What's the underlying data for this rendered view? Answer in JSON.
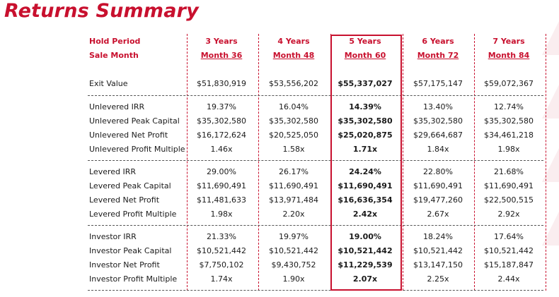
{
  "title": "Returns Summary",
  "header": {
    "hold_label": "Hold Period",
    "sale_label": "Sale Month",
    "columns": [
      {
        "period": "3 Years",
        "month": "Month 36"
      },
      {
        "period": "4 Years",
        "month": "Month 48"
      },
      {
        "period": "5 Years",
        "month": "Month 60"
      },
      {
        "period": "6 Years",
        "month": "Month 72"
      },
      {
        "period": "7 Years",
        "month": "Month 84"
      }
    ]
  },
  "highlight_column_index": 2,
  "accent_color": "#c8102e",
  "rows": [
    {
      "label": "Exit Value",
      "values": [
        "$51,830,919",
        "$53,556,202",
        "$55,337,027",
        "$57,175,147",
        "$59,072,367"
      ]
    },
    {
      "label": "Unlevered IRR",
      "values": [
        "19.37%",
        "16.04%",
        "14.39%",
        "13.40%",
        "12.74%"
      ]
    },
    {
      "label": "Unlevered Peak Capital",
      "values": [
        "$35,302,580",
        "$35,302,580",
        "$35,302,580",
        "$35,302,580",
        "$35,302,580"
      ]
    },
    {
      "label": "Unlevered Net Profit",
      "values": [
        "$16,172,624",
        "$20,525,050",
        "$25,020,875",
        "$29,664,687",
        "$34,461,218"
      ]
    },
    {
      "label": "Unlevered Profit Multiple",
      "values": [
        "1.46x",
        "1.58x",
        "1.71x",
        "1.84x",
        "1.98x"
      ]
    },
    {
      "label": "Levered IRR",
      "values": [
        "29.00%",
        "26.17%",
        "24.24%",
        "22.80%",
        "21.68%"
      ]
    },
    {
      "label": "Levered Peak Capital",
      "values": [
        "$11,690,491",
        "$11,690,491",
        "$11,690,491",
        "$11,690,491",
        "$11,690,491"
      ]
    },
    {
      "label": "Levered Net Profit",
      "values": [
        "$11,481,633",
        "$13,971,484",
        "$16,636,354",
        "$19,477,260",
        "$22,500,515"
      ]
    },
    {
      "label": "Levered Profit Multiple",
      "values": [
        "1.98x",
        "2.20x",
        "2.42x",
        "2.67x",
        "2.92x"
      ]
    },
    {
      "label": "Investor IRR",
      "values": [
        "21.33%",
        "19.97%",
        "19.00%",
        "18.24%",
        "17.64%"
      ]
    },
    {
      "label": "Investor Peak Capital",
      "values": [
        "$10,521,442",
        "$10,521,442",
        "$10,521,442",
        "$10,521,442",
        "$10,521,442"
      ]
    },
    {
      "label": "Investor Net Profit",
      "values": [
        "$7,750,102",
        "$9,430,752",
        "$11,229,539",
        "$13,147,150",
        "$15,187,847"
      ]
    },
    {
      "label": "Investor Profit Multiple",
      "values": [
        "1.74x",
        "1.90x",
        "2.07x",
        "2.25x",
        "2.44x"
      ]
    }
  ]
}
